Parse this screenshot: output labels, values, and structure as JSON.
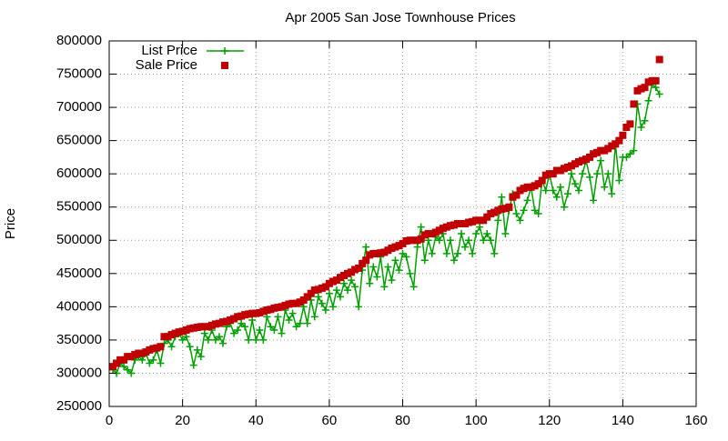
{
  "chart_data": {
    "type": "scatter",
    "title": "Apr 2005 San Jose Townhouse Prices",
    "y_label": "Price",
    "grid": true,
    "legend": "top-left",
    "xlim": [
      0,
      160
    ],
    "xticks": [
      0,
      20,
      40,
      60,
      80,
      100,
      120,
      140,
      160
    ],
    "ylim": [
      250000,
      800000
    ],
    "yticks": [
      250000,
      300000,
      350000,
      400000,
      450000,
      500000,
      550000,
      600000,
      650000,
      700000,
      750000,
      800000
    ],
    "x": [
      1,
      2,
      3,
      4,
      5,
      6,
      7,
      8,
      9,
      10,
      11,
      12,
      13,
      14,
      15,
      16,
      17,
      18,
      19,
      20,
      21,
      22,
      23,
      24,
      25,
      26,
      27,
      28,
      29,
      30,
      31,
      32,
      33,
      34,
      35,
      36,
      37,
      38,
      39,
      40,
      41,
      42,
      43,
      44,
      45,
      46,
      47,
      48,
      49,
      50,
      51,
      52,
      53,
      54,
      55,
      56,
      57,
      58,
      59,
      60,
      61,
      62,
      63,
      64,
      65,
      66,
      67,
      68,
      69,
      70,
      71,
      72,
      73,
      74,
      75,
      76,
      77,
      78,
      79,
      80,
      81,
      82,
      83,
      84,
      85,
      86,
      87,
      88,
      89,
      90,
      91,
      92,
      93,
      94,
      95,
      96,
      97,
      98,
      99,
      100,
      101,
      102,
      103,
      104,
      105,
      106,
      107,
      108,
      109,
      110,
      111,
      112,
      113,
      114,
      115,
      116,
      117,
      118,
      119,
      120,
      121,
      122,
      123,
      124,
      125,
      126,
      127,
      128,
      129,
      130,
      131,
      132,
      133,
      134,
      135,
      136,
      137,
      138,
      139,
      140,
      141,
      142,
      143,
      144,
      145,
      146,
      147,
      148,
      149,
      150
    ],
    "series": [
      {
        "name": "List Price",
        "color": "#00a000",
        "style": "linespoints",
        "values": [
          305000,
          300000,
          315000,
          310000,
          305000,
          300000,
          320000,
          325000,
          320000,
          330000,
          315000,
          320000,
          335000,
          315000,
          345000,
          350000,
          340000,
          355000,
          360000,
          350000,
          355000,
          340000,
          312000,
          335000,
          325000,
          360000,
          350000,
          365000,
          350000,
          355000,
          345000,
          370000,
          375000,
          360000,
          365000,
          375000,
          370000,
          350000,
          380000,
          350000,
          365000,
          350000,
          385000,
          370000,
          365000,
          385000,
          360000,
          395000,
          380000,
          390000,
          370000,
          375000,
          400000,
          375000,
          410000,
          385000,
          415000,
          405000,
          395000,
          420000,
          400000,
          425000,
          415000,
          435000,
          425000,
          440000,
          430000,
          400000,
          455000,
          490000,
          435000,
          460000,
          445000,
          475000,
          430000,
          460000,
          440000,
          470000,
          455000,
          480000,
          475000,
          450000,
          430000,
          490000,
          520000,
          470000,
          500000,
          480000,
          505000,
          500000,
          510000,
          480000,
          500000,
          470000,
          480000,
          510000,
          490000,
          500000,
          480000,
          510000,
          520000,
          500000,
          510000,
          500000,
          480000,
          530000,
          565000,
          510000,
          545000,
          570000,
          540000,
          530000,
          545000,
          560000,
          580000,
          545000,
          540000,
          590000,
          575000,
          600000,
          575000,
          565000,
          580000,
          550000,
          570000,
          600000,
          585000,
          575000,
          600000,
          620000,
          595000,
          560000,
          600000,
          620000,
          580000,
          600000,
          570000,
          645000,
          590000,
          625000,
          625000,
          630000,
          635000,
          705000,
          670000,
          680000,
          710000,
          735000,
          730000,
          720000
        ]
      },
      {
        "name": "Sale Price",
        "color": "#c00000",
        "style": "points",
        "values": [
          310000,
          315000,
          320000,
          320000,
          325000,
          325000,
          328000,
          330000,
          330000,
          332000,
          335000,
          337000,
          338000,
          340000,
          355000,
          355000,
          358000,
          360000,
          362000,
          363000,
          365000,
          367000,
          368000,
          369000,
          370000,
          370000,
          370000,
          372000,
          374000,
          375000,
          377000,
          378000,
          380000,
          382000,
          385000,
          386000,
          388000,
          389000,
          390000,
          390000,
          391000,
          393000,
          395000,
          396000,
          398000,
          399000,
          400000,
          402000,
          404000,
          405000,
          405000,
          407000,
          410000,
          415000,
          420000,
          425000,
          426000,
          428000,
          430000,
          435000,
          438000,
          440000,
          444000,
          447000,
          450000,
          452000,
          456000,
          458000,
          465000,
          470000,
          478000,
          480000,
          480000,
          481000,
          482000,
          485000,
          488000,
          490000,
          492000,
          495000,
          499000,
          500000,
          500000,
          500000,
          502000,
          508000,
          510000,
          510000,
          512000,
          515000,
          518000,
          520000,
          522000,
          523000,
          525000,
          525000,
          525000,
          527000,
          528000,
          530000,
          530000,
          530000,
          535000,
          540000,
          542000,
          545000,
          547000,
          548000,
          550000,
          565000,
          568000,
          575000,
          578000,
          580000,
          580000,
          582000,
          585000,
          590000,
          598000,
          600000,
          600000,
          605000,
          605000,
          608000,
          610000,
          612000,
          615000,
          618000,
          620000,
          622000,
          625000,
          630000,
          632000,
          635000,
          635000,
          638000,
          642000,
          645000,
          650000,
          658000,
          670000,
          675000,
          705000,
          725000,
          728000,
          730000,
          738000,
          740000,
          740000,
          772000
        ]
      }
    ]
  }
}
